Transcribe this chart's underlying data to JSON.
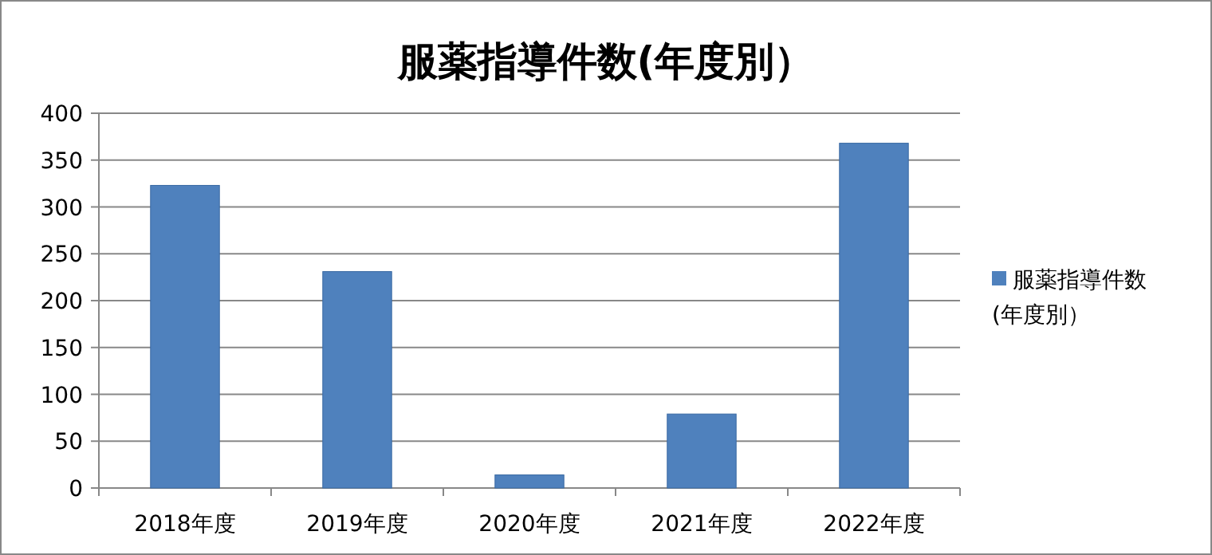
{
  "chart_data": {
    "type": "bar",
    "title": "服薬指導件数(年度別）",
    "categories": [
      "2018年度",
      "2019年度",
      "2020年度",
      "2021年度",
      "2022年度"
    ],
    "series": [
      {
        "name": "服薬指導件数(年度別）",
        "color": "#4f81bd",
        "values": [
          323,
          231,
          14,
          79,
          368
        ]
      }
    ],
    "ylim": [
      0,
      400
    ],
    "yticks": [
      0,
      50,
      100,
      150,
      200,
      250,
      300,
      350,
      400
    ],
    "grid": "y",
    "legend": "right"
  }
}
